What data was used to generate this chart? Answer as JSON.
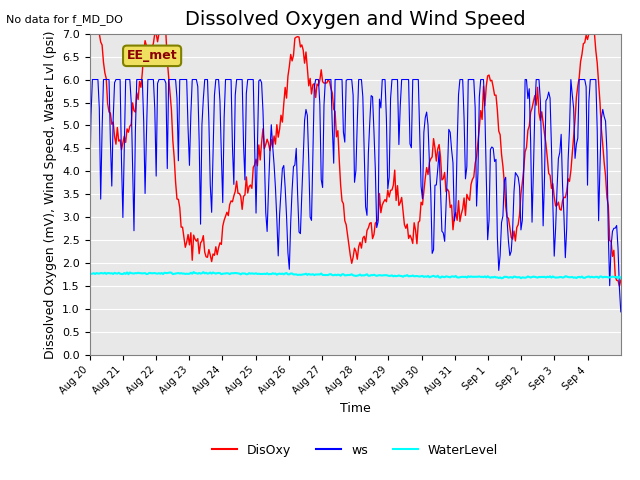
{
  "title": "Dissolved Oxygen and Wind Speed",
  "top_left_text": "No data for f_MD_DO",
  "annotation_text": "EE_met",
  "ylabel": "Dissolved Oxygen (mV), Wind Speed, Water Lvl (psi)",
  "xlabel": "Time",
  "ylim": [
    0.0,
    7.0
  ],
  "yticks": [
    0.0,
    0.5,
    1.0,
    1.5,
    2.0,
    2.5,
    3.0,
    3.5,
    4.0,
    4.5,
    5.0,
    5.5,
    6.0,
    6.5,
    7.0
  ],
  "xtick_labels": [
    "Aug 20",
    "Aug 21",
    "Aug 22",
    "Aug 23",
    "Aug 24",
    "Aug 25",
    "Aug 26",
    "Aug 27",
    "Aug 28",
    "Aug 29",
    "Aug 30",
    "Aug 31",
    "Sep 1",
    "Sep 2",
    "Sep 3",
    "Sep 4"
  ],
  "legend_labels": [
    "DisOxy",
    "ws",
    "WaterLevel"
  ],
  "line_colors": [
    "red",
    "blue",
    "cyan"
  ],
  "background_color": "#e8e8e8",
  "title_fontsize": 14,
  "label_fontsize": 9,
  "n_days": 16
}
